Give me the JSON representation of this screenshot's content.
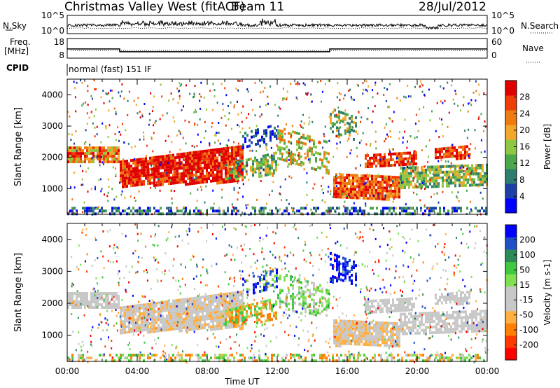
{
  "header": {
    "station": "Christmas Valley West (fitACF)",
    "beam": "Beam 11",
    "date": "28/Jul/2012"
  },
  "labels": {
    "nsky": "N.Sky",
    "nsearch": "N.Search",
    "freq": "Freq.",
    "freq_unit": "[MHz]",
    "nave": "Nave",
    "cpid": "CPID",
    "cpid_text": "normal (fast) 151 IF"
  },
  "colors": {
    "power_scale": [
      "#0000ff",
      "#1c3fa8",
      "#2e7d6e",
      "#4ca64c",
      "#8fc642",
      "#f2a72a",
      "#f07a12",
      "#ef3d0a",
      "#e00000"
    ],
    "velocity_scale": [
      "#ff0000",
      "#ff3a00",
      "#ff8000",
      "#ffb040",
      "#c8c8c8",
      "#c8c8c8",
      "#80e050",
      "#40c840",
      "#2e8b57",
      "#2050c8",
      "#0000ff"
    ]
  },
  "chart_data": [
    {
      "type": "line",
      "title": "N.Sky / N.Search",
      "left_ticks": [
        "10^5",
        "10^0"
      ],
      "right_ticks": [
        "10^5",
        "10^0"
      ]
    },
    {
      "type": "line",
      "title": "Freq. / Nave",
      "left_ticks": [
        "18",
        "8"
      ],
      "right_ticks": [
        "60",
        "0"
      ],
      "freq_segments_hours": [
        [
          0,
          3,
          13.2
        ],
        [
          3,
          15,
          11.6
        ],
        [
          15,
          24,
          13.2
        ]
      ]
    },
    {
      "type": "heatmap",
      "title": "Power",
      "ylabel": "Slant Range [km]",
      "yticks": [
        "4000",
        "3000",
        "2000",
        "1000"
      ],
      "ylim": [
        180,
        4500
      ],
      "colorbar_label": "Power [dB]",
      "colorbar_ticks": [
        "28",
        "24",
        "20",
        "16",
        "12",
        "8",
        "4"
      ]
    },
    {
      "type": "heatmap",
      "title": "Velocity",
      "ylabel": "Slant Range [km]",
      "yticks": [
        "4000",
        "3000",
        "2000",
        "1000"
      ],
      "ylim": [
        180,
        4500
      ],
      "colorbar_label": "Velocity [m s-1]",
      "colorbar_ticks": [
        "200",
        "100",
        "50",
        "15",
        "-15",
        "-50",
        "-100",
        "-200"
      ],
      "xlabel": "Time UT",
      "xticks": [
        "00:00",
        "04:00",
        "08:00",
        "12:00",
        "16:00",
        "20:00",
        "00:00"
      ]
    }
  ]
}
